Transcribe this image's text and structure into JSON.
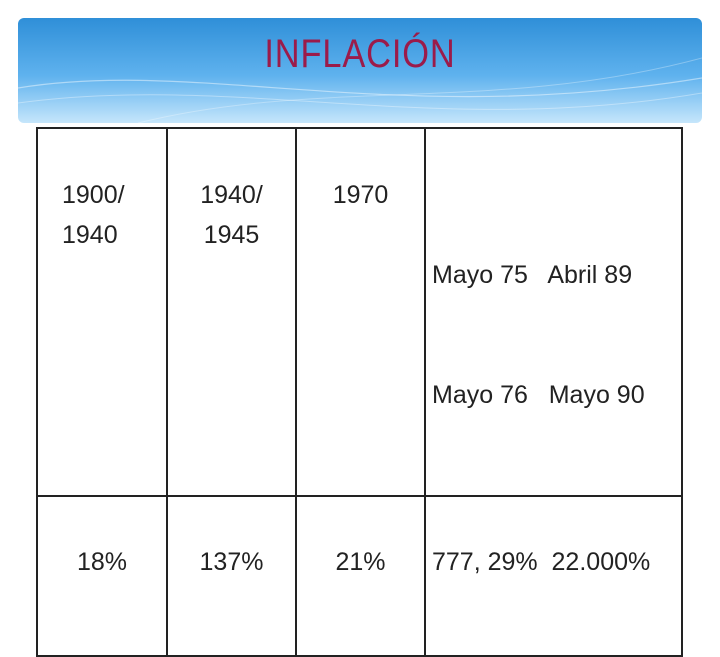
{
  "title": "INFLACIÓN",
  "table": {
    "columns": [
      {
        "period": [
          "1900/",
          "1940"
        ],
        "value": "18%"
      },
      {
        "period": [
          "1940/",
          "1945"
        ],
        "value": "137%"
      },
      {
        "period": [
          "1970"
        ],
        "value": "21%"
      },
      {
        "period": [
          "Mayo 75   Abril 89",
          "Mayo 76   Mayo 90"
        ],
        "value": "777, 29%  22.000%"
      }
    ]
  },
  "colors": {
    "banner": "#4aa3e6",
    "title": "#9b1b4a",
    "border": "#222222"
  }
}
